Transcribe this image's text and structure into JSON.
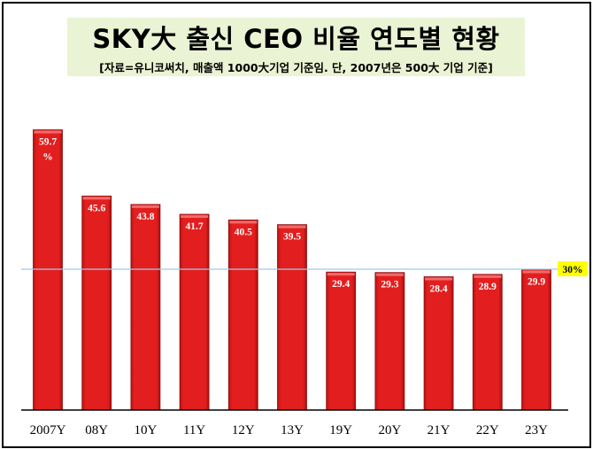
{
  "chart_data": {
    "type": "bar",
    "title": "SKY大 출신 CEO 비율 연도별 현황",
    "subtitle": "[자료=유니코써치, 매출액 1000大기업 기준임. 단, 2007년은 500大 기업 기준]",
    "categories": [
      "2007Y",
      "08Y",
      "10Y",
      "11Y",
      "12Y",
      "13Y",
      "19Y",
      "20Y",
      "21Y",
      "22Y",
      "23Y"
    ],
    "values": [
      59.7,
      45.6,
      43.8,
      41.7,
      40.5,
      39.5,
      29.4,
      29.3,
      28.4,
      28.9,
      29.9
    ],
    "value_labels": [
      "59.7",
      "45.6",
      "43.8",
      "41.7",
      "40.5",
      "39.5",
      "29.4",
      "29.3",
      "28.4",
      "28.9",
      "29.9"
    ],
    "first_value_unit": "%",
    "reference_line": {
      "value": 30,
      "label": "30%",
      "color": "#9ecbe8",
      "label_bg": "#ffff00"
    },
    "bar_color": "#e31e1e",
    "bar_edge_color": "#8b0d0d",
    "ylim": [
      0,
      60
    ],
    "xlabel": "",
    "ylabel": "",
    "grid": false,
    "legend": "none"
  }
}
